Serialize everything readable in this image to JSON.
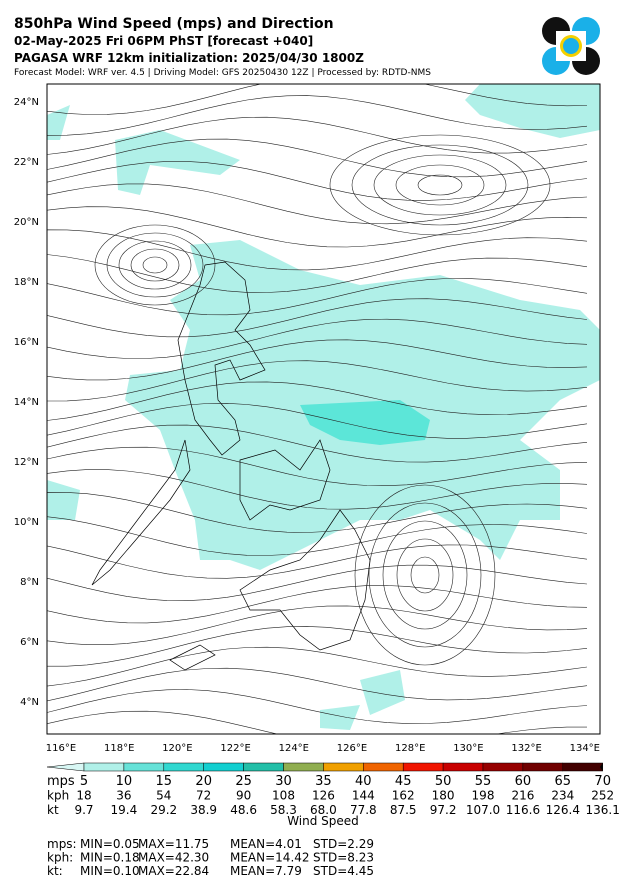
{
  "header": {
    "title": "850hPa Wind Speed (mps) and Direction",
    "line2": "02-May-2025 Fri 06PM PhST [forecast +040]",
    "line3": "PAGASA WRF 12km initialization: 2025/04/30 1800Z",
    "line4": "Forecast Model: WRF ver. 4.5 | Driving Model: GFS 20250430 12Z | Processed by: RDTD-NMS"
  },
  "map": {
    "lat_labels": [
      "24°N",
      "22°N",
      "20°N",
      "18°N",
      "16°N",
      "14°N",
      "12°N",
      "10°N",
      "8°N",
      "6°N",
      "4°N"
    ],
    "lon_labels": [
      "116°E",
      "118°E",
      "120°E",
      "122°E",
      "124°E",
      "126°E",
      "128°E",
      "130°E",
      "132°E",
      "134°E"
    ]
  },
  "colorbar": {
    "title": "Wind Speed",
    "colors": [
      "#d8f7f4",
      "#b0f0e8",
      "#66e2d8",
      "#30d8d0",
      "#12cfd0",
      "#22bfa8",
      "#90ae50",
      "#f0a000",
      "#f06400",
      "#f01400",
      "#c80000",
      "#960000",
      "#700000",
      "#420000",
      "#000000"
    ],
    "rows": [
      {
        "label": "mps",
        "values": [
          "5",
          "10",
          "15",
          "20",
          "25",
          "30",
          "35",
          "40",
          "45",
          "50",
          "55",
          "60",
          "65",
          "70"
        ]
      },
      {
        "label": "kph",
        "values": [
          "18",
          "36",
          "54",
          "72",
          "90",
          "108",
          "126",
          "144",
          "162",
          "180",
          "198",
          "216",
          "234",
          "252"
        ]
      },
      {
        "label": "kt",
        "values": [
          "9.7",
          "19.4",
          "29.2",
          "38.9",
          "48.6",
          "58.3",
          "68.0",
          "77.8",
          "87.5",
          "97.2",
          "107.0",
          "116.6",
          "126.4",
          "136.1"
        ]
      }
    ]
  },
  "stats": [
    [
      "mps:",
      "MIN=0.05",
      "MAX=11.75",
      "MEAN=4.01",
      "STD=2.29"
    ],
    [
      "kph:",
      "MIN=0.18",
      "MAX=42.30",
      "MEAN=14.42",
      "STD=8.23"
    ],
    [
      "kt:",
      "MIN=0.10",
      "MAX=22.84",
      "MEAN=7.79",
      "STD=4.45"
    ]
  ]
}
